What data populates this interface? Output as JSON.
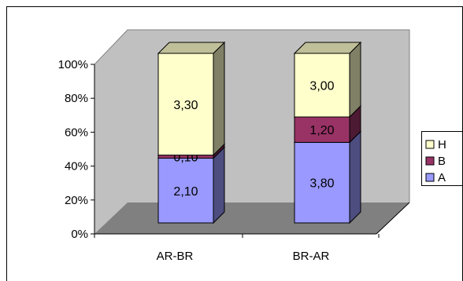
{
  "chart_data": {
    "type": "bar",
    "stacked": "percent",
    "three_d": true,
    "title": "",
    "xlabel": "",
    "ylabel": "",
    "ylim": [
      0,
      100
    ],
    "y_ticks": [
      "0%",
      "20%",
      "40%",
      "60%",
      "80%",
      "100%"
    ],
    "categories": [
      "AR-BR",
      "BR-AR"
    ],
    "series": [
      {
        "name": "A",
        "values": [
          2.1,
          3.8
        ],
        "labels": [
          "2,10",
          "3,80"
        ],
        "color": "#9999ff"
      },
      {
        "name": "B",
        "values": [
          0.1,
          1.2
        ],
        "labels": [
          "0,10",
          "1,20"
        ],
        "color": "#993366"
      },
      {
        "name": "H",
        "values": [
          3.3,
          3.0
        ],
        "labels": [
          "3,30",
          "3,00"
        ],
        "color": "#ffffcc"
      }
    ],
    "legend": {
      "position": "right",
      "order": [
        "H",
        "B",
        "A"
      ]
    },
    "grid": false,
    "wall_color": "#c0c0c0",
    "floor_color": "#808080"
  }
}
